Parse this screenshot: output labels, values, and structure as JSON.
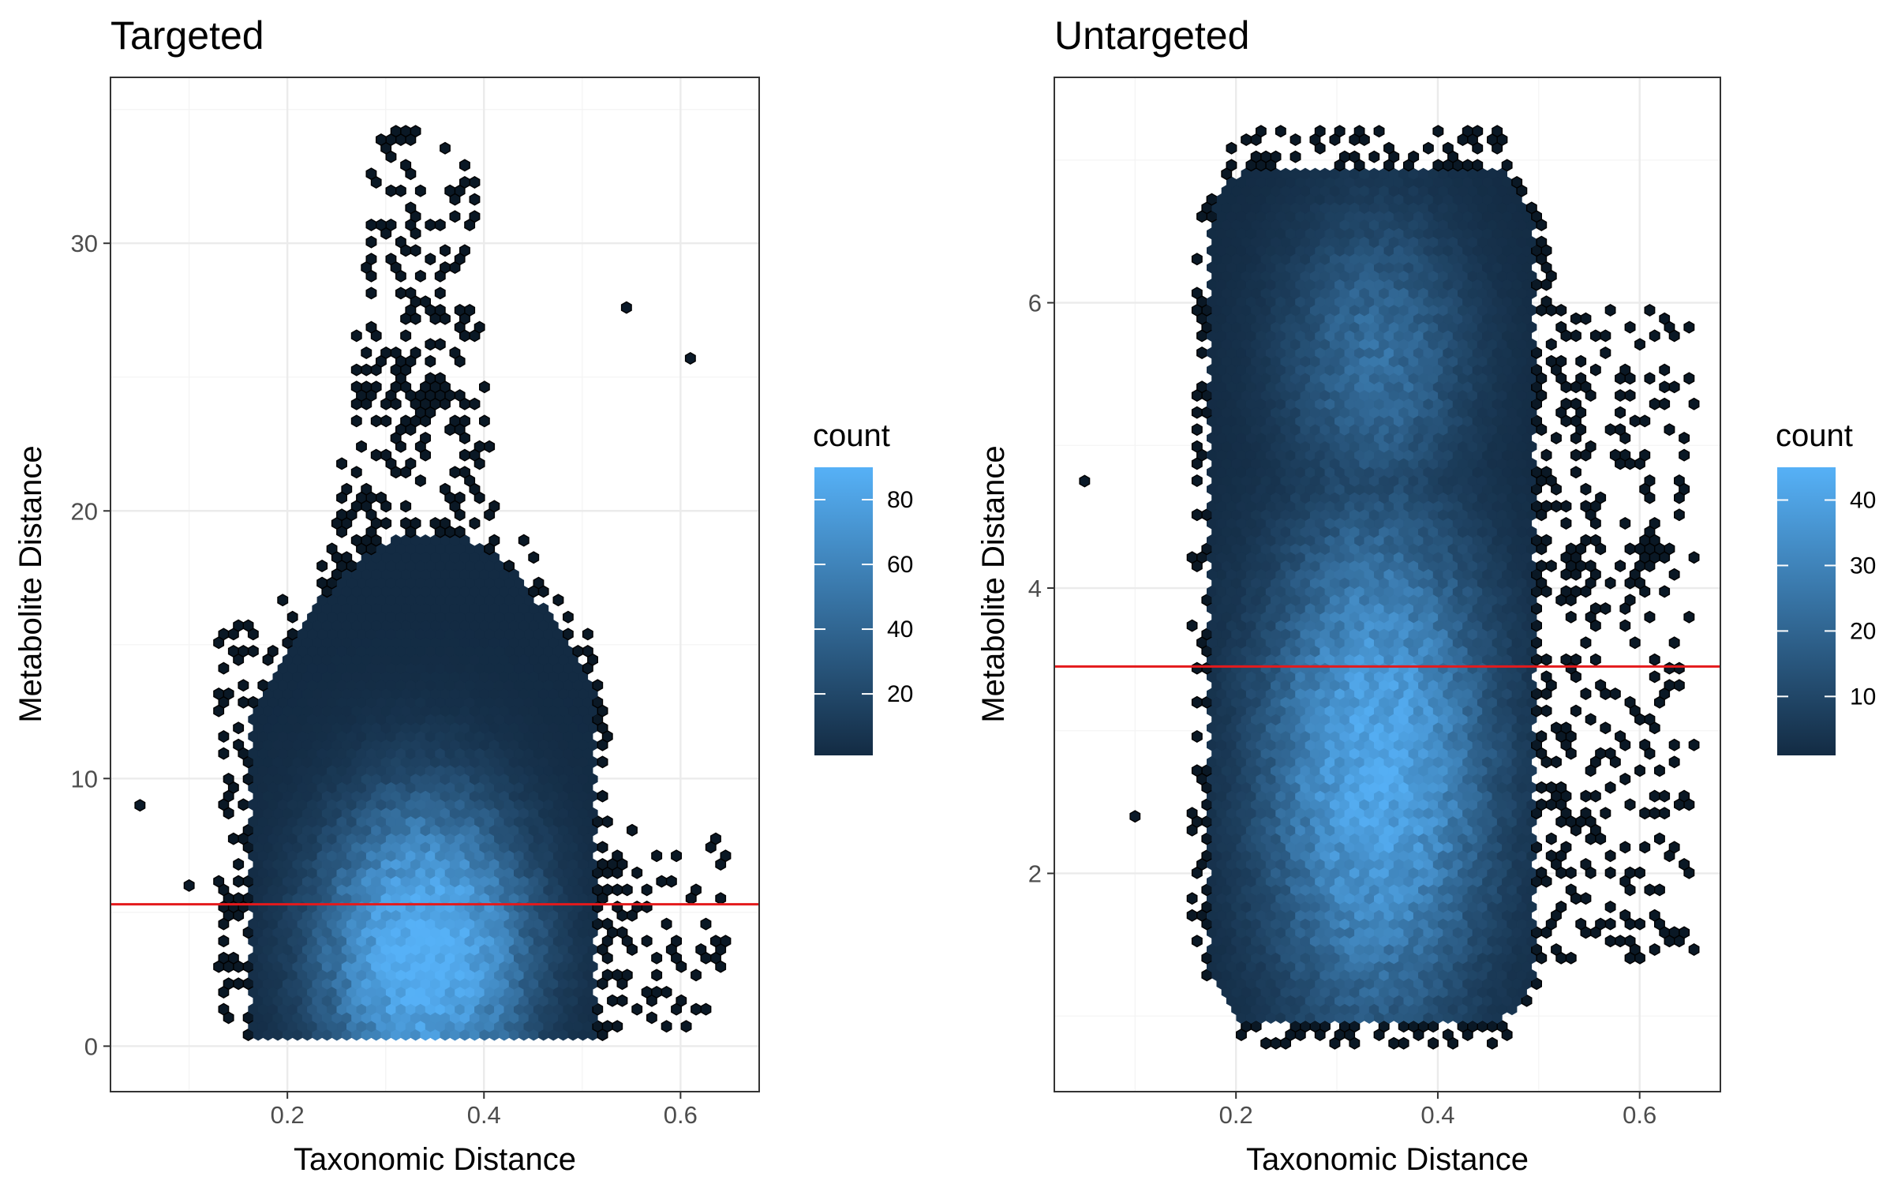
{
  "colors": {
    "low": "#132B43",
    "high": "#56B1F7",
    "ref_line": "#e41a1c",
    "grid": "#ebebeb",
    "border": "#333333"
  },
  "chart_data": [
    {
      "type": "heatmap",
      "subtype": "hexbin",
      "title": "Targeted",
      "xlabel": "Taxonomic Distance",
      "ylabel": "Metabolite Distance",
      "xlim": [
        0.02,
        0.68
      ],
      "ylim": [
        -1.7,
        36.2
      ],
      "x_ticks": [
        0.2,
        0.4,
        0.6
      ],
      "x_tick_labels": [
        "0.2",
        "0.4",
        "0.6"
      ],
      "y_ticks": [
        0,
        10,
        20,
        30
      ],
      "y_tick_labels": [
        "0",
        "10",
        "20",
        "30"
      ],
      "grid": true,
      "hline": 5.3,
      "density_peak": {
        "x": 0.34,
        "y": 3.5
      },
      "dense_region": {
        "x_range": [
          0.16,
          0.52
        ],
        "y_range": [
          0.3,
          19.5
        ]
      },
      "sparse_region": {
        "x_range": [
          0.25,
          0.42
        ],
        "y_range": [
          19,
          34.5
        ]
      },
      "outliers": [
        [
          0.05,
          9.0
        ],
        [
          0.1,
          6.0
        ],
        [
          0.545,
          27.6
        ],
        [
          0.61,
          25.7
        ]
      ],
      "legend": {
        "title": "count",
        "position": "right",
        "min": 1,
        "max": 90,
        "ticks": [
          20,
          40,
          60,
          80
        ],
        "tick_labels": [
          "20",
          "40",
          "60",
          "80"
        ]
      }
    },
    {
      "type": "heatmap",
      "subtype": "hexbin",
      "title": "Untargeted",
      "xlabel": "Taxonomic Distance",
      "ylabel": "Metabolite Distance",
      "xlim": [
        0.02,
        0.68
      ],
      "ylim": [
        0.47,
        7.58
      ],
      "x_ticks": [
        0.2,
        0.4,
        0.6
      ],
      "x_tick_labels": [
        "0.2",
        "0.4",
        "0.6"
      ],
      "y_ticks": [
        2,
        4,
        6
      ],
      "y_tick_labels": [
        "2",
        "4",
        "6"
      ],
      "grid": true,
      "hline": 3.45,
      "density_peak": {
        "x": 0.34,
        "y": 2.7
      },
      "dense_region": {
        "x_range": [
          0.17,
          0.5
        ],
        "y_range": [
          0.8,
          7.2
        ]
      },
      "outliers": [
        [
          0.05,
          4.75
        ],
        [
          0.1,
          2.4
        ]
      ],
      "legend": {
        "title": "count",
        "position": "right",
        "min": 1,
        "max": 45,
        "ticks": [
          10,
          20,
          30,
          40
        ],
        "tick_labels": [
          "10",
          "20",
          "30",
          "40"
        ]
      }
    }
  ]
}
